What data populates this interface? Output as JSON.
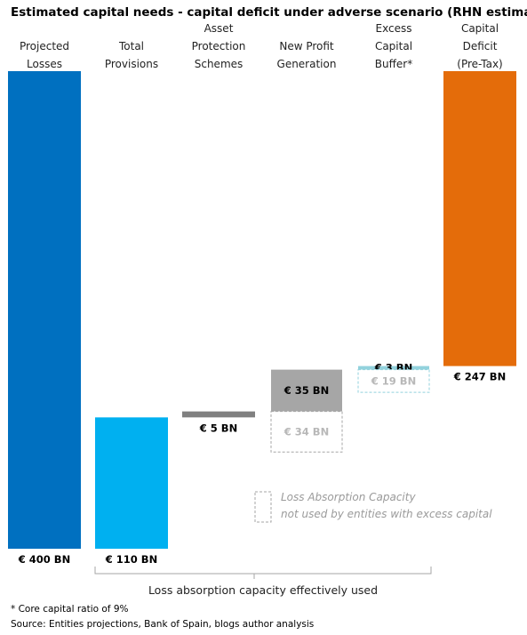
{
  "chart_data": {
    "type": "bar",
    "title": "Estimated capital needs - capital deficit under adverse scenario (RHN estimates)",
    "categories": [
      [
        "Projected",
        "Losses"
      ],
      [
        "Total",
        "Provisions"
      ],
      [
        "Asset",
        "Protection",
        "Schemes"
      ],
      [
        "New Profit",
        "Generation"
      ],
      [
        "Excess",
        "Capital",
        "Buffer*"
      ],
      [
        "Capital",
        "Deficit",
        "(Pre-Tax)"
      ]
    ],
    "bars": [
      {
        "category": 0,
        "kind": "total",
        "start": 0,
        "end": 400,
        "label": "€ 400 BN",
        "color": "#0070C0"
      },
      {
        "category": 1,
        "kind": "decrease",
        "start": 0,
        "end": 110,
        "label": "€ 110 BN",
        "color": "#00B0F0"
      },
      {
        "category": 2,
        "kind": "decrease",
        "start": 110,
        "end": 115,
        "label": "€ 5 BN",
        "color": "#808080"
      },
      {
        "category": 3,
        "kind": "decrease",
        "start": 115,
        "end": 150,
        "label": "€ 35 BN",
        "color": "#A6A6A6"
      },
      {
        "category": 3,
        "kind": "unused",
        "start": 115,
        "end": 149,
        "label": "€ 34 BN",
        "color": "#A6A6A6"
      },
      {
        "category": 4,
        "kind": "decrease",
        "start": 150,
        "end": 153,
        "label": "€ 3 BN",
        "color": "#92D2DD"
      },
      {
        "category": 4,
        "kind": "unused",
        "start": 134,
        "end": 153,
        "label": "€ 19 BN",
        "color": "#92D2DD"
      },
      {
        "category": 5,
        "kind": "total",
        "start": 153,
        "end": 400,
        "label": "€ 247 BN",
        "color": "#E46C0A"
      }
    ],
    "ylim": [
      0,
      400
    ],
    "legend": {
      "entries": [
        "Loss Absorption Capacity",
        "not used by entities with excess capital"
      ],
      "placement": "bottom-right"
    },
    "bracket_label": "Loss absorption capacity effectively used",
    "footnotes": [
      "* Core capital ratio of 9%",
      "Source: Entities projections, Bank of Spain, blogs author analysis"
    ]
  }
}
